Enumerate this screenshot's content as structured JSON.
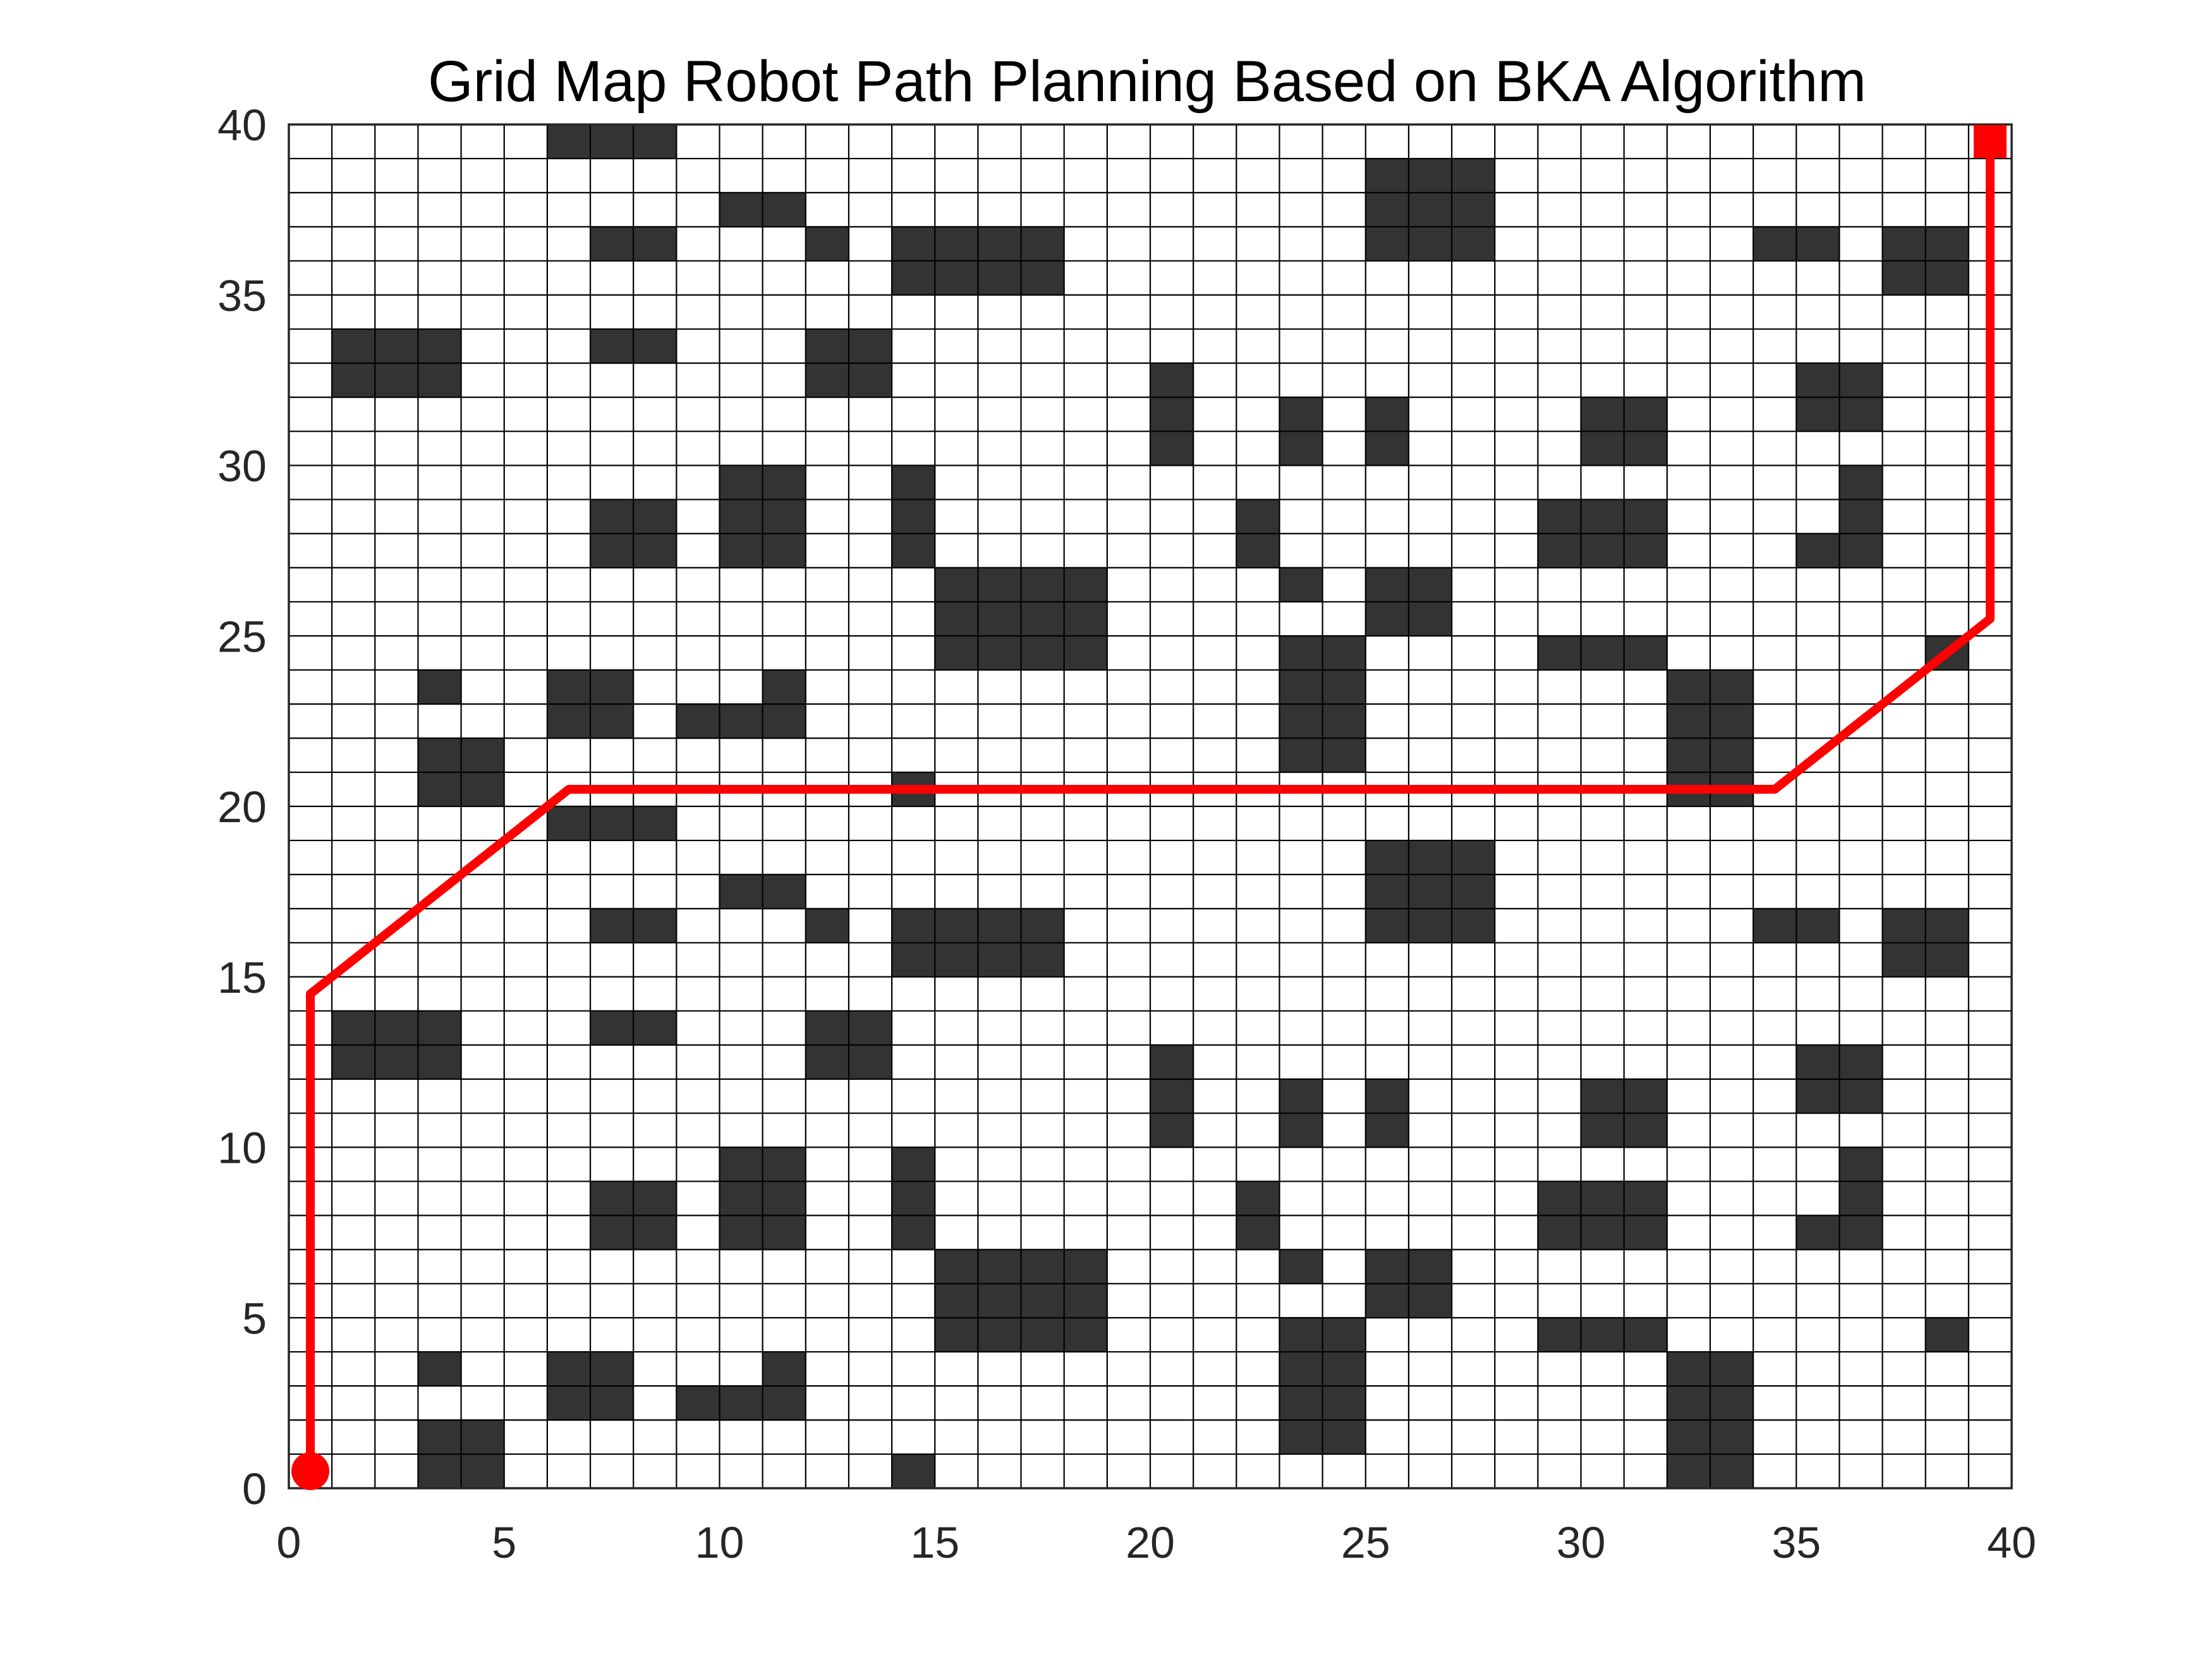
{
  "chart_data": {
    "type": "heatmap",
    "title": "Grid Map Robot Path Planning Based on BKA Algorithm",
    "xlabel": "",
    "ylabel": "",
    "xlim": [
      0,
      40
    ],
    "ylim": [
      0,
      40
    ],
    "xticks": [
      0,
      5,
      10,
      15,
      20,
      25,
      30,
      35,
      40
    ],
    "yticks": [
      0,
      5,
      10,
      15,
      20,
      25,
      30,
      35,
      40
    ],
    "grid": true,
    "grid_rows": 40,
    "grid_cols": 40,
    "obstacle_color": "#333333",
    "free_color": "#ffffff",
    "gridline_color": "#000000",
    "path_color": "#ff0000",
    "obstacles_half": [
      [
        3,
        0
      ],
      [
        4,
        0
      ],
      [
        14,
        0
      ],
      [
        32,
        0
      ],
      [
        33,
        0
      ],
      [
        3,
        1
      ],
      [
        4,
        1
      ],
      [
        23,
        1
      ],
      [
        24,
        1
      ],
      [
        32,
        1
      ],
      [
        33,
        1
      ],
      [
        6,
        2
      ],
      [
        7,
        2
      ],
      [
        9,
        2
      ],
      [
        10,
        2
      ],
      [
        11,
        2
      ],
      [
        23,
        2
      ],
      [
        24,
        2
      ],
      [
        32,
        2
      ],
      [
        33,
        2
      ],
      [
        3,
        3
      ],
      [
        6,
        3
      ],
      [
        7,
        3
      ],
      [
        11,
        3
      ],
      [
        23,
        3
      ],
      [
        24,
        3
      ],
      [
        32,
        3
      ],
      [
        33,
        3
      ],
      [
        15,
        4
      ],
      [
        16,
        4
      ],
      [
        17,
        4
      ],
      [
        18,
        4
      ],
      [
        23,
        4
      ],
      [
        24,
        4
      ],
      [
        29,
        4
      ],
      [
        30,
        4
      ],
      [
        31,
        4
      ],
      [
        38,
        4
      ],
      [
        15,
        5
      ],
      [
        16,
        5
      ],
      [
        17,
        5
      ],
      [
        18,
        5
      ],
      [
        25,
        5
      ],
      [
        26,
        5
      ],
      [
        15,
        6
      ],
      [
        16,
        6
      ],
      [
        17,
        6
      ],
      [
        18,
        6
      ],
      [
        23,
        6
      ],
      [
        25,
        6
      ],
      [
        26,
        6
      ],
      [
        7,
        7
      ],
      [
        8,
        7
      ],
      [
        10,
        7
      ],
      [
        11,
        7
      ],
      [
        14,
        7
      ],
      [
        22,
        7
      ],
      [
        29,
        7
      ],
      [
        30,
        7
      ],
      [
        31,
        7
      ],
      [
        35,
        7
      ],
      [
        36,
        7
      ],
      [
        7,
        8
      ],
      [
        8,
        8
      ],
      [
        10,
        8
      ],
      [
        11,
        8
      ],
      [
        14,
        8
      ],
      [
        22,
        8
      ],
      [
        29,
        8
      ],
      [
        30,
        8
      ],
      [
        31,
        8
      ],
      [
        36,
        8
      ],
      [
        10,
        9
      ],
      [
        11,
        9
      ],
      [
        14,
        9
      ],
      [
        36,
        9
      ],
      [
        20,
        10
      ],
      [
        23,
        10
      ],
      [
        25,
        10
      ],
      [
        30,
        10
      ],
      [
        31,
        10
      ],
      [
        20,
        11
      ],
      [
        23,
        11
      ],
      [
        25,
        11
      ],
      [
        30,
        11
      ],
      [
        31,
        11
      ],
      [
        35,
        11
      ],
      [
        36,
        11
      ],
      [
        1,
        12
      ],
      [
        2,
        12
      ],
      [
        3,
        12
      ],
      [
        12,
        12
      ],
      [
        13,
        12
      ],
      [
        20,
        12
      ],
      [
        35,
        12
      ],
      [
        36,
        12
      ],
      [
        1,
        13
      ],
      [
        2,
        13
      ],
      [
        3,
        13
      ],
      [
        7,
        13
      ],
      [
        8,
        13
      ],
      [
        12,
        13
      ],
      [
        13,
        13
      ],
      [
        14,
        15
      ],
      [
        15,
        15
      ],
      [
        16,
        15
      ],
      [
        17,
        15
      ],
      [
        37,
        15
      ],
      [
        38,
        15
      ],
      [
        7,
        16
      ],
      [
        8,
        16
      ],
      [
        12,
        16
      ],
      [
        14,
        16
      ],
      [
        15,
        16
      ],
      [
        16,
        16
      ],
      [
        17,
        16
      ],
      [
        25,
        16
      ],
      [
        26,
        16
      ],
      [
        27,
        16
      ],
      [
        34,
        16
      ],
      [
        35,
        16
      ],
      [
        37,
        16
      ],
      [
        38,
        16
      ],
      [
        10,
        17
      ],
      [
        11,
        17
      ],
      [
        25,
        17
      ],
      [
        26,
        17
      ],
      [
        27,
        17
      ],
      [
        25,
        18
      ],
      [
        26,
        18
      ],
      [
        27,
        18
      ],
      [
        6,
        19
      ],
      [
        7,
        19
      ],
      [
        8,
        19
      ]
    ],
    "obstacles_top_extra": [
      [
        6,
        19
      ],
      [
        7,
        19
      ],
      [
        8,
        19
      ]
    ],
    "path": {
      "name": "",
      "x": [
        0.5,
        0.5,
        6.5,
        34.5,
        39.5,
        39.5
      ],
      "y": [
        0.5,
        14.5,
        20.5,
        20.5,
        25.5,
        39.5
      ]
    },
    "start": {
      "x": 0.5,
      "y": 0.5,
      "marker": "circle"
    },
    "goal": {
      "x": 39.5,
      "y": 39.5,
      "marker": "square"
    }
  }
}
